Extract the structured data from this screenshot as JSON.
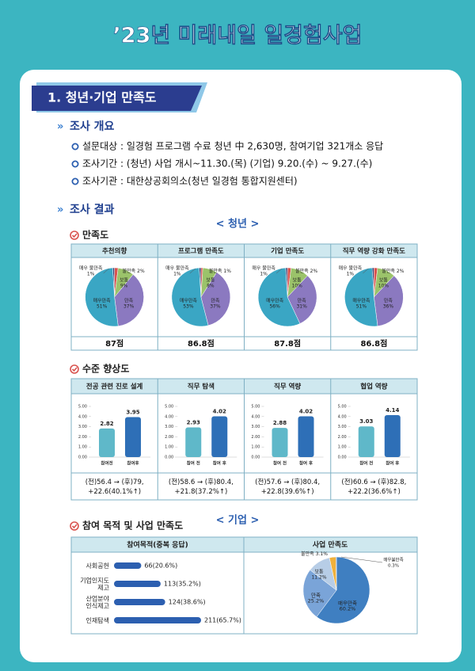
{
  "header": {
    "title": "’23년 미래내일 일경험사업"
  },
  "section": {
    "title": "1. 청년·기업 만족도"
  },
  "overview": {
    "heading": "조사 개요",
    "items": [
      "설문대상 : 일경험 프로그램 수료 청년 中 2,630명, 참여기업 321개소 응답",
      "조사기간 : (청년) 사업 개시~11.30.(목)   (기업) 9.20.(수) ~ 9.27.(수)",
      "조사기관 : 대한상공회의소(청년 일경험 통합지원센터)"
    ]
  },
  "results": {
    "heading": "조사 결과",
    "youth_label": "< 청년 >",
    "company_label": "< 기업 >"
  },
  "satisfaction": {
    "heading": "만족도",
    "charts": [
      {
        "type": "pie",
        "title": "추천의향",
        "categories": [
          "매우 불만족",
          "불만족",
          "보통",
          "만족",
          "매우만족"
        ],
        "values": [
          1,
          2,
          9,
          37,
          51
        ],
        "value_labels": [
          "1%",
          "2%",
          "9%",
          "37%",
          "51%"
        ],
        "colors": [
          "#2f3b73",
          "#d9534f",
          "#9bc36a",
          "#8b79c0",
          "#3aa6c4"
        ],
        "score": "87점"
      },
      {
        "type": "pie",
        "title": "프로그램 만족도",
        "categories": [
          "매우 불만족",
          "불만족",
          "보통",
          "만족",
          "매우만족"
        ],
        "values": [
          1,
          1,
          8,
          37,
          53
        ],
        "value_labels": [
          "1%",
          "1%",
          "8%",
          "37%",
          "53%"
        ],
        "colors": [
          "#2f3b73",
          "#d9534f",
          "#9bc36a",
          "#8b79c0",
          "#3aa6c4"
        ],
        "score": "86.8점"
      },
      {
        "type": "pie",
        "title": "기업 만족도",
        "categories": [
          "매우 불만족",
          "불만족",
          "보통",
          "만족",
          "매우만족"
        ],
        "values": [
          1,
          2,
          10,
          31,
          56
        ],
        "value_labels": [
          "1%",
          "2%",
          "10%",
          "31%",
          "56%"
        ],
        "colors": [
          "#2f3b73",
          "#d9534f",
          "#9bc36a",
          "#8b79c0",
          "#3aa6c4"
        ],
        "score": "87.8점"
      },
      {
        "type": "pie",
        "title": "직무 역량 강화 만족도",
        "categories": [
          "매우 불만족",
          "불만족",
          "보통",
          "만족",
          "매우만족"
        ],
        "values": [
          1,
          2,
          10,
          36,
          51
        ],
        "value_labels": [
          "1%",
          "2%",
          "10%",
          "36%",
          "51%"
        ],
        "colors": [
          "#2f3b73",
          "#d9534f",
          "#9bc36a",
          "#8b79c0",
          "#3aa6c4"
        ],
        "score": "86.8점"
      }
    ]
  },
  "improvement": {
    "heading": "수준 향상도",
    "charts": [
      {
        "type": "bar",
        "title": "전공 관련 진로 설계",
        "categories": [
          "참여전",
          "참여후"
        ],
        "values": [
          2.82,
          3.95
        ],
        "colors": [
          "#5fb8c9",
          "#2e6fb7"
        ],
        "ylim": [
          0,
          5
        ],
        "yticks": [
          {
            "value": 0,
            "label": "0.00"
          },
          {
            "value": 1,
            "label": "1.00"
          },
          {
            "value": 2,
            "label": "2.00"
          },
          {
            "value": 3,
            "label": "3.00"
          },
          {
            "value": 4,
            "label": "4.00"
          },
          {
            "value": 5,
            "label": "5.00"
          }
        ],
        "note": [
          "(전)56.4 → (후)79,",
          "+22.6(40.1%↑)"
        ]
      },
      {
        "type": "bar",
        "title": "직무 탐색",
        "categories": [
          "참여 전",
          "참여 후"
        ],
        "values": [
          2.93,
          4.02
        ],
        "colors": [
          "#5fb8c9",
          "#2e6fb7"
        ],
        "ylim": [
          0,
          5
        ],
        "yticks": [
          {
            "value": 0,
            "label": "0.00"
          },
          {
            "value": 1,
            "label": "1.00"
          },
          {
            "value": 2,
            "label": "2.00"
          },
          {
            "value": 3,
            "label": "3.00"
          },
          {
            "value": 4,
            "label": "4.00"
          },
          {
            "value": 5,
            "label": "5.00"
          }
        ],
        "note": [
          "(전)58.6 → (후)80.4,",
          "+21.8(37.2%↑)"
        ]
      },
      {
        "type": "bar",
        "title": "직무 역량",
        "categories": [
          "참여 전",
          "참여 후"
        ],
        "values": [
          2.88,
          4.02
        ],
        "colors": [
          "#5fb8c9",
          "#2e6fb7"
        ],
        "ylim": [
          0,
          5
        ],
        "yticks": [
          {
            "value": 0,
            "label": "0.00"
          },
          {
            "value": 1,
            "label": "1.00"
          },
          {
            "value": 2,
            "label": "2.00"
          },
          {
            "value": 3,
            "label": "3.00"
          },
          {
            "value": 4,
            "label": "4.00"
          },
          {
            "value": 5,
            "label": "5.00"
          }
        ],
        "note": [
          "(전)57.6 → (후)80.4,",
          "+22.8(39.6%↑)"
        ]
      },
      {
        "type": "bar",
        "title": "협업 역량",
        "categories": [
          "참여 전",
          "참여 후"
        ],
        "values": [
          3.03,
          4.14
        ],
        "colors": [
          "#5fb8c9",
          "#2e6fb7"
        ],
        "ylim": [
          0,
          5
        ],
        "yticks": [
          {
            "value": 0,
            "label": "0.00"
          },
          {
            "value": 1,
            "label": "1.00"
          },
          {
            "value": 2,
            "label": "2.00"
          },
          {
            "value": 3,
            "label": "3.00"
          },
          {
            "value": 4,
            "label": "4.00"
          },
          {
            "value": 5,
            "label": "5.00"
          }
        ],
        "note": [
          "(전)60.6 → (후)82.8,",
          "+22.2(36.6%↑)"
        ]
      }
    ]
  },
  "company": {
    "heading": "참여 목적 및 사업 만족도",
    "purpose": {
      "type": "bar",
      "orientation": "horizontal",
      "title": "참여목적(중복 응답)",
      "categories": [
        [
          "사회공헌"
        ],
        [
          "기업인지도",
          "제고"
        ],
        [
          "산업분야",
          "인식제고"
        ],
        [
          "인재탐색"
        ]
      ],
      "values": [
        66,
        113,
        124,
        211
      ],
      "value_labels": [
        "66(20.6%)",
        "113(35.2%)",
        "124(38.6%)",
        "211(65.7%)"
      ],
      "color": "#2c5fb0"
    },
    "satisfaction": {
      "type": "pie",
      "title": "사업 만족도",
      "categories": [
        "매우불만족",
        "불만족",
        "보통",
        "만족",
        "매우만족"
      ],
      "values": [
        0.3,
        3.1,
        11.2,
        25.2,
        60.2
      ],
      "value_labels": [
        "0.3%",
        "3.1%",
        "11.2%",
        "25.2%",
        "60.2%"
      ],
      "colors": [
        "#444444",
        "#f0b13b",
        "#b7cde6",
        "#7aa4d8",
        "#3f7fc1"
      ]
    }
  }
}
